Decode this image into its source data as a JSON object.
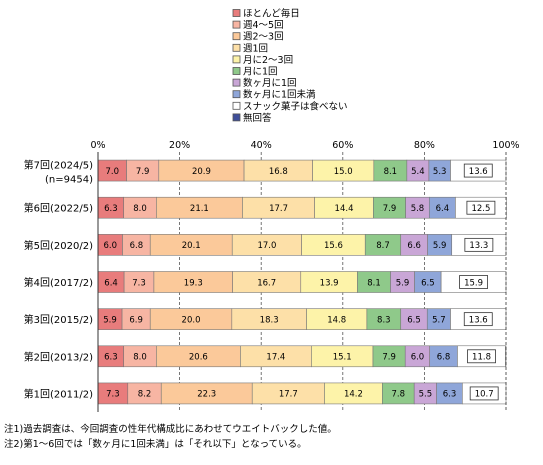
{
  "chart_data": {
    "type": "bar",
    "orientation": "horizontal",
    "stacked": "percent",
    "categories": [
      "第7回(2024/5)",
      "第6回(2022/5)",
      "第5回(2020/2)",
      "第4回(2017/2)",
      "第3回(2015/2)",
      "第2回(2013/2)",
      "第1回(2011/2)"
    ],
    "category_sublabels": [
      "(n=9454)",
      "",
      "",
      "",
      "",
      "",
      ""
    ],
    "series": [
      {
        "name": "ほとんど毎日",
        "color": "#e87c7c",
        "values": [
          7.0,
          6.3,
          6.0,
          6.4,
          5.9,
          6.3,
          7.3
        ]
      },
      {
        "name": "週4～5回",
        "color": "#f7b5a3",
        "values": [
          7.9,
          8.0,
          6.8,
          7.3,
          6.9,
          8.0,
          8.2
        ]
      },
      {
        "name": "週2～3回",
        "color": "#fbc99a",
        "values": [
          20.9,
          21.1,
          20.1,
          19.3,
          20.0,
          20.6,
          22.3
        ]
      },
      {
        "name": "週1回",
        "color": "#fde0a8",
        "values": [
          16.8,
          17.7,
          17.0,
          16.7,
          18.3,
          17.4,
          17.7
        ]
      },
      {
        "name": "月に2～3回",
        "color": "#fdf3a9",
        "values": [
          15.0,
          14.4,
          15.6,
          13.9,
          14.8,
          15.1,
          14.2
        ]
      },
      {
        "name": "月に1回",
        "color": "#8fc98a",
        "values": [
          8.1,
          7.9,
          8.7,
          8.1,
          8.3,
          7.9,
          7.8
        ]
      },
      {
        "name": "数ヶ月に1回",
        "color": "#c9a6d6",
        "values": [
          5.4,
          5.8,
          6.6,
          5.9,
          6.5,
          6.0,
          5.5
        ]
      },
      {
        "name": "数ヶ月に1回未満",
        "color": "#8fa6d9",
        "values": [
          5.3,
          6.4,
          5.9,
          6.5,
          5.7,
          6.8,
          6.3
        ]
      },
      {
        "name": "スナック菓子は食べない",
        "color": "#ffffff",
        "values": [
          13.6,
          12.5,
          13.3,
          15.9,
          13.6,
          11.8,
          10.7
        ]
      },
      {
        "name": "無回答",
        "color": "#3f4f9a",
        "values": [
          0,
          0,
          0,
          0,
          0,
          0,
          0
        ]
      }
    ],
    "x_ticks": [
      "0%",
      "20%",
      "40%",
      "60%",
      "80%",
      "100%"
    ],
    "xlim": [
      0,
      100
    ],
    "grid": true,
    "legend_position": "top"
  },
  "notes": [
    "注1)過去調査は、今回調査の性年代構成比にあわせてウエイトバックした値。",
    "注2)第1～6回では「数ヶ月に1回未満」は「それ以下」となっている。"
  ]
}
